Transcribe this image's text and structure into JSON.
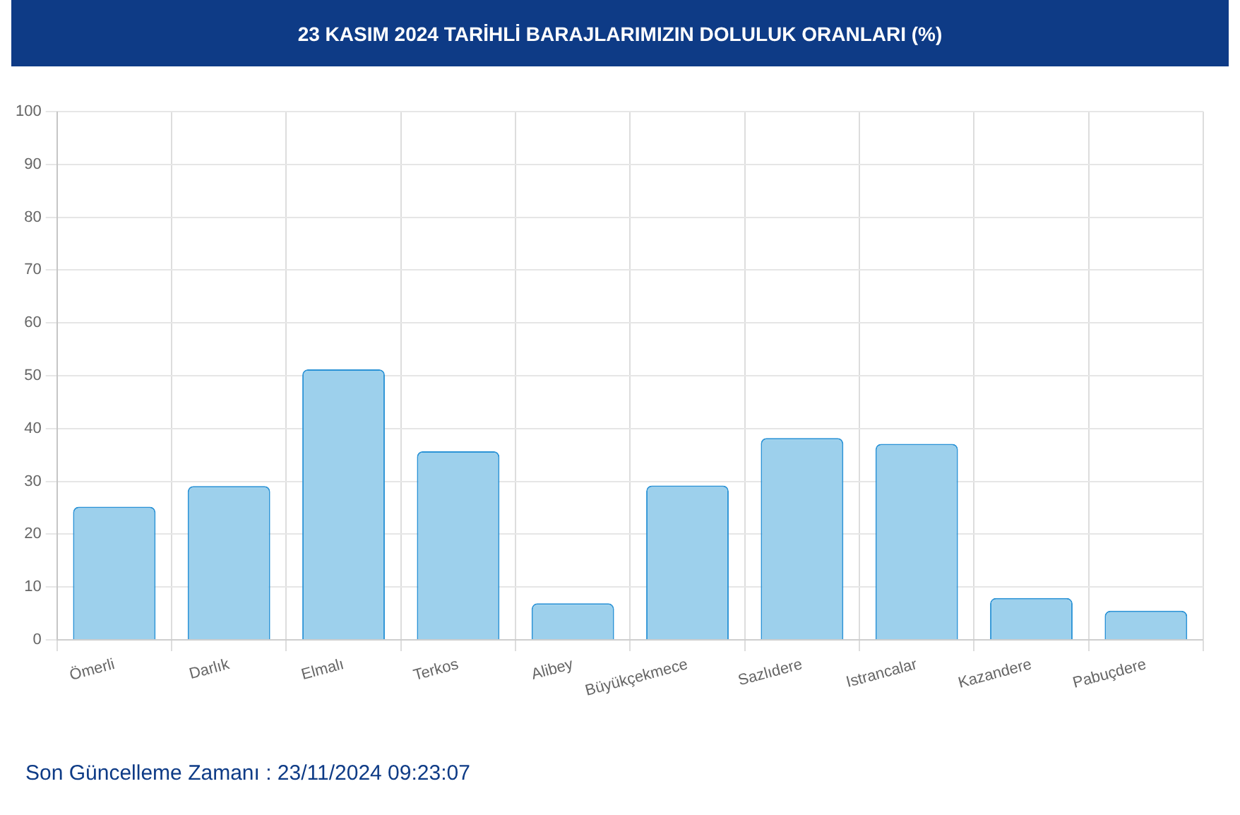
{
  "chart_data": {
    "type": "bar",
    "title": "23 KASIM 2024 TARİHLİ BARAJLARIMIZIN DOLULUK ORANLARI (%)",
    "categories": [
      "Ömerli",
      "Darlık",
      "Elmalı",
      "Terkos",
      "Alibey",
      "Büyükçekmece",
      "Sazlıdere",
      "Istrancalar",
      "Kazandere",
      "Pabuçdere"
    ],
    "values": [
      25.2,
      29.1,
      51.2,
      35.7,
      6.9,
      29.2,
      38.2,
      37.1,
      7.9,
      5.5
    ],
    "color": "#9dd0ec",
    "ylim": [
      0,
      100
    ],
    "yticks": [
      0,
      10,
      20,
      30,
      40,
      50,
      60,
      70,
      80,
      90,
      100
    ],
    "grid": true,
    "legend": false,
    "annotations": [
      "Son Güncelleme Zamanı : 23/11/2024 09:23:07"
    ]
  }
}
